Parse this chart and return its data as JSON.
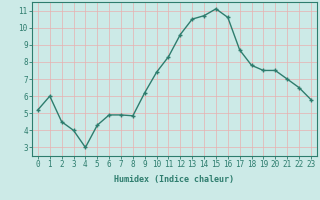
{
  "x": [
    0,
    1,
    2,
    3,
    4,
    5,
    6,
    7,
    8,
    9,
    10,
    11,
    12,
    13,
    14,
    15,
    16,
    17,
    18,
    19,
    20,
    21,
    22,
    23
  ],
  "y": [
    5.2,
    6.0,
    4.5,
    4.0,
    3.0,
    4.3,
    4.9,
    4.9,
    4.85,
    6.2,
    7.4,
    8.3,
    9.6,
    10.5,
    10.7,
    11.1,
    10.6,
    8.7,
    7.8,
    7.5,
    7.5,
    7.0,
    6.5,
    5.8
  ],
  "line_color": "#2e7d6e",
  "marker": "+",
  "marker_size": 3,
  "bg_color": "#cceae7",
  "grid_color": "#e8b0b0",
  "xlabel": "Humidex (Indice chaleur)",
  "ylim": [
    2.5,
    11.5
  ],
  "xlim": [
    -0.5,
    23.5
  ],
  "yticks": [
    3,
    4,
    5,
    6,
    7,
    8,
    9,
    10,
    11
  ],
  "xticks": [
    0,
    1,
    2,
    3,
    4,
    5,
    6,
    7,
    8,
    9,
    10,
    11,
    12,
    13,
    14,
    15,
    16,
    17,
    18,
    19,
    20,
    21,
    22,
    23
  ],
  "tick_color": "#2e7d6e",
  "label_fontsize": 6,
  "tick_fontsize": 5.5,
  "axis_color": "#2e7d6e",
  "line_width": 1.0,
  "marker_edge_width": 1.0
}
